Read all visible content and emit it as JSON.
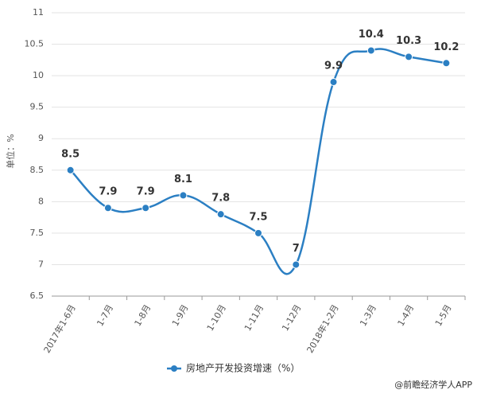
{
  "chart_data": {
    "type": "line",
    "y_label": "单位：%",
    "categories": [
      "2017年1-6月",
      "1-7月",
      "1-8月",
      "1-9月",
      "1-10月",
      "1-11月",
      "1-12月",
      "2018年1-2月",
      "1-3月",
      "1-4月",
      "1-5月"
    ],
    "series": [
      {
        "name": "房地产开发投资增速（%）",
        "color": "#2b7fc3",
        "values": [
          8.5,
          7.9,
          7.9,
          8.1,
          7.8,
          7.5,
          7,
          9.9,
          10.4,
          10.3,
          10.2
        ]
      }
    ],
    "ylim": [
      6.5,
      11
    ],
    "yticks": [
      6.5,
      7,
      7.5,
      8,
      8.5,
      9,
      9.5,
      10,
      10.5,
      11
    ],
    "grid": true,
    "legend": "bottom"
  },
  "footer": "@前瞻经济学人APP"
}
